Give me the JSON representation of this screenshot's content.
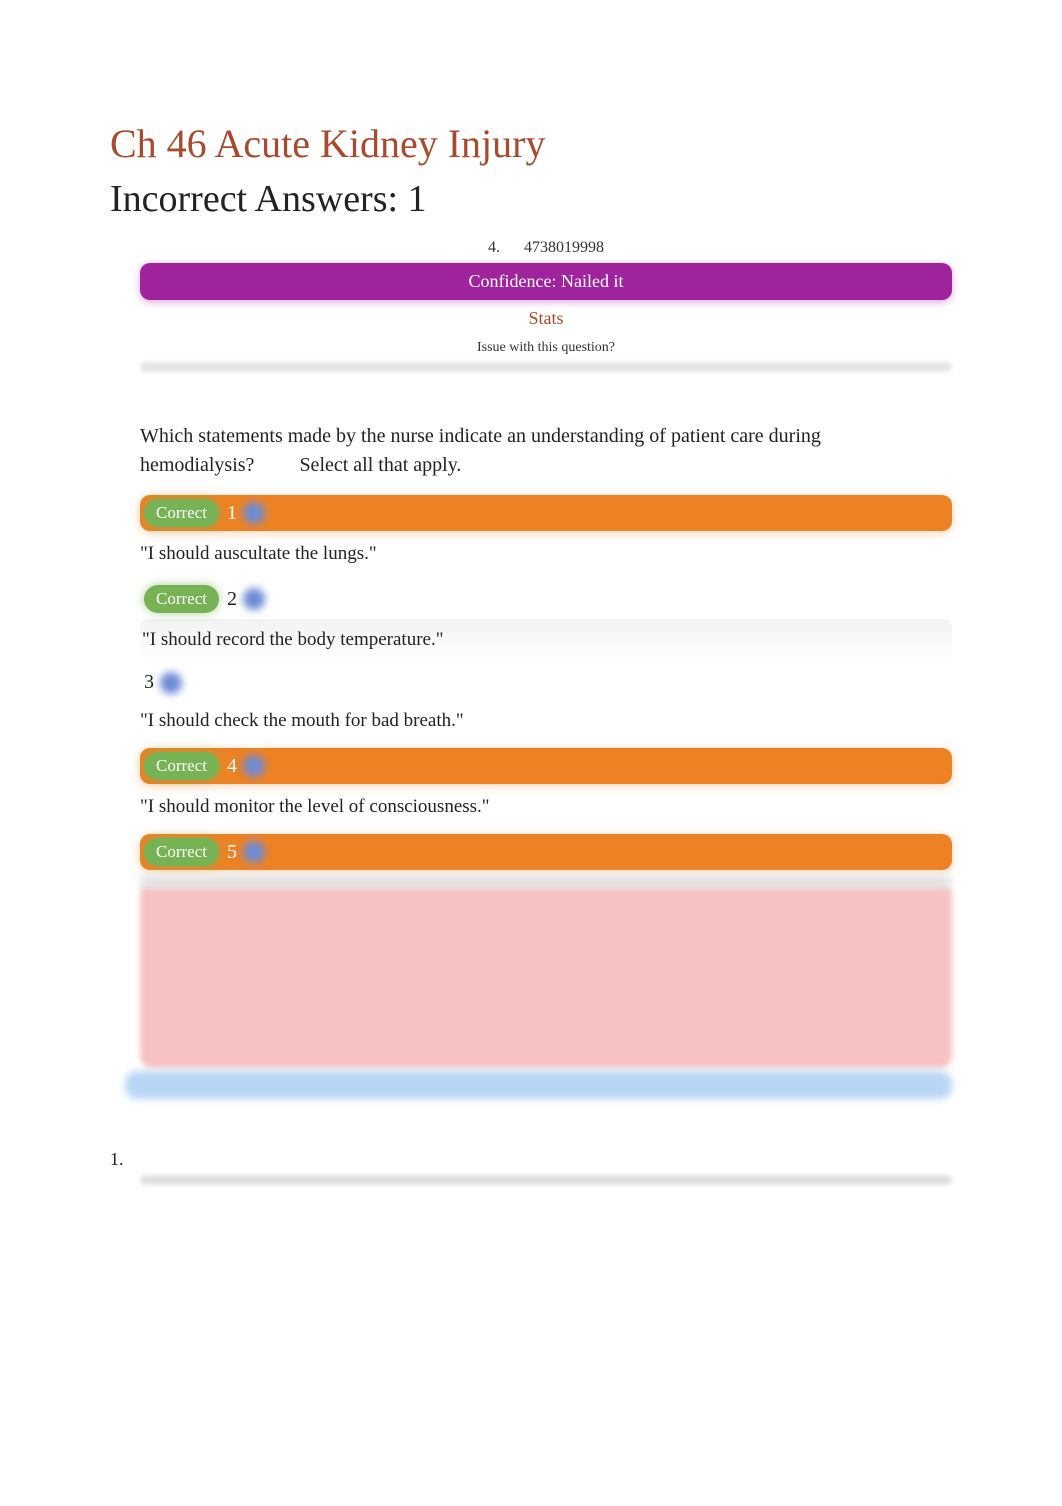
{
  "chapter_title": "Ch 46 Acute Kidney Injury",
  "incorrect_heading": "Incorrect Answers: 1",
  "meta": {
    "question_number": "4.",
    "question_id": "4738019998",
    "confidence": "Confidence: Nailed it",
    "stats": "Stats",
    "issue": "Issue with this question?"
  },
  "question": {
    "stem": "Which statements made by the nurse indicate an understanding of patient care during hemodialysis?",
    "instruction": "Select all that apply."
  },
  "options": [
    {
      "num": "1",
      "correct": true,
      "highlighted": true,
      "text": "\"I should auscultate the lungs.\""
    },
    {
      "num": "2",
      "correct": true,
      "highlighted": false,
      "text": "\"I should record the body temperature.\""
    },
    {
      "num": "3",
      "correct": false,
      "highlighted": false,
      "text": "\"I should check the mouth for bad breath.\""
    },
    {
      "num": "4",
      "correct": true,
      "highlighted": true,
      "text": "\"I should monitor the level of consciousness.\""
    },
    {
      "num": "5",
      "correct": true,
      "highlighted": true,
      "text": ""
    }
  ],
  "correct_label": "Correct",
  "list_marker": "1.",
  "colors": {
    "title": "#a84a2d",
    "confidence_bg": "#a0239e",
    "correct_badge": "#77b255",
    "highlight_bg": "#ed8224",
    "dot": "#6d8bd6",
    "explanation_bg": "#f7c2c2",
    "bottom_bar": "#b8d5f5"
  }
}
